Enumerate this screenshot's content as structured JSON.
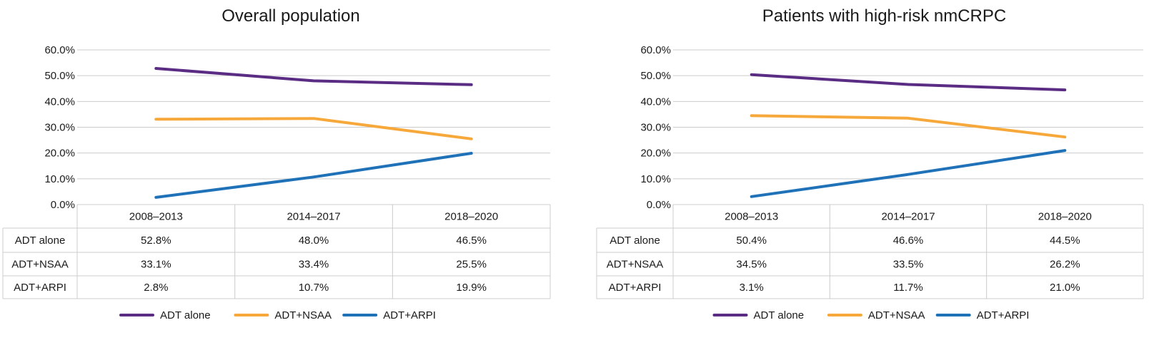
{
  "chart_data": [
    {
      "type": "line",
      "title": "Overall population",
      "categories": [
        "2008–2013",
        "2014–2017",
        "2018–2020"
      ],
      "ylim": [
        0,
        60
      ],
      "yticks": [
        "0.0%",
        "10.0%",
        "20.0%",
        "30.0%",
        "40.0%",
        "50.0%",
        "60.0%"
      ],
      "grid": true,
      "legend_position": "bottom",
      "series": [
        {
          "name": "ADT alone",
          "color": "#5b2c83",
          "values": [
            52.8,
            48.0,
            46.5
          ],
          "labels": [
            "52.8%",
            "48.0%",
            "46.5%"
          ]
        },
        {
          "name": "ADT+NSAA",
          "color": "#f6a83b",
          "values": [
            33.1,
            33.4,
            25.5
          ],
          "labels": [
            "33.1%",
            "33.4%",
            "25.5%"
          ]
        },
        {
          "name": "ADT+ARPI",
          "color": "#1f72b8",
          "values": [
            2.8,
            10.7,
            19.9
          ],
          "labels": [
            "2.8%",
            "10.7%",
            "19.9%"
          ]
        }
      ]
    },
    {
      "type": "line",
      "title": "Patients with high-risk nmCRPC",
      "categories": [
        "2008–2013",
        "2014–2017",
        "2018–2020"
      ],
      "ylim": [
        0,
        60
      ],
      "yticks": [
        "0.0%",
        "10.0%",
        "20.0%",
        "30.0%",
        "40.0%",
        "50.0%",
        "60.0%"
      ],
      "grid": true,
      "legend_position": "bottom",
      "series": [
        {
          "name": "ADT alone",
          "color": "#5b2c83",
          "values": [
            50.4,
            46.6,
            44.5
          ],
          "labels": [
            "50.4%",
            "46.6%",
            "44.5%"
          ]
        },
        {
          "name": "ADT+NSAA",
          "color": "#f6a83b",
          "values": [
            34.5,
            33.5,
            26.2
          ],
          "labels": [
            "34.5%",
            "33.5%",
            "26.2%"
          ]
        },
        {
          "name": "ADT+ARPI",
          "color": "#1f72b8",
          "values": [
            3.1,
            11.7,
            21.0
          ],
          "labels": [
            "3.1%",
            "11.7%",
            "21.0%"
          ]
        }
      ]
    }
  ]
}
